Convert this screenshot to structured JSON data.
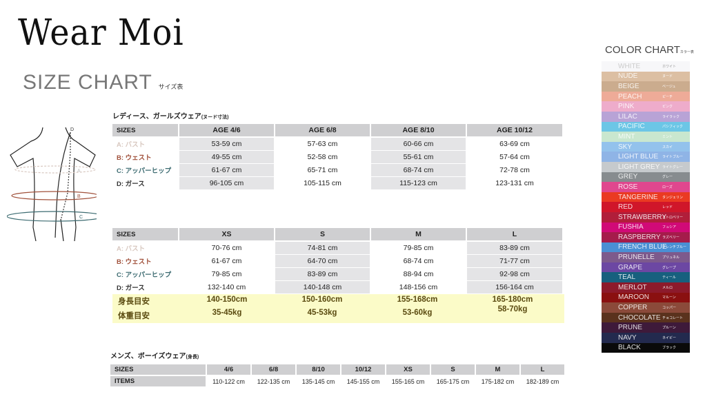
{
  "brand": "Wear Moi",
  "title": "SIZE CHART",
  "title_jp": "サイズ表",
  "ladies": {
    "heading": "レディース、ガールズウェア",
    "heading_note": "(ヌード寸法)",
    "headers": [
      "SIZES",
      "AGE 4/6",
      "AGE 6/8",
      "AGE 8/10",
      "AGE 10/12"
    ],
    "rows": [
      {
        "label": "A: バスト",
        "color": "#d8c8c0",
        "values": [
          "53-59 cm",
          "57-63 cm",
          "60-66 cm",
          "63-69 cm"
        ]
      },
      {
        "label": "B: ウェスト",
        "color": "#a0503a",
        "values": [
          "49-55 cm",
          "52-58 cm",
          "55-61 cm",
          "57-64 cm"
        ]
      },
      {
        "label": "C: アッパーヒップ",
        "color": "#3b6a70",
        "values": [
          "61-67 cm",
          "65-71 cm",
          "68-74 cm",
          "72-78 cm"
        ]
      },
      {
        "label": "D: ガース",
        "color": "#333333",
        "values": [
          "96-105 cm",
          "105-115  cm",
          "115-123 cm",
          "123-131 cm"
        ]
      }
    ]
  },
  "adult": {
    "headers": [
      "SIZES",
      "XS",
      "S",
      "M",
      "L"
    ],
    "rows": [
      {
        "label": "A: バスト",
        "color": "#d8c8c0",
        "values": [
          "70-76 cm",
          "74-81 cm",
          "79-85 cm",
          "83-89 cm"
        ]
      },
      {
        "label": "B: ウェスト",
        "color": "#a0503a",
        "values": [
          "61-67 cm",
          "64-70  cm",
          "68-74 cm",
          "71-77 cm"
        ]
      },
      {
        "label": "C: アッパーヒップ",
        "color": "#3b6a70",
        "values": [
          "79-85 cm",
          "83-89 cm",
          "88-94 cm",
          "92-98 cm"
        ]
      },
      {
        "label": "D: ガース",
        "color": "#333333",
        "values": [
          "132-140 cm",
          "140-148 cm",
          "148-156 cm",
          "156-164 cm"
        ]
      }
    ],
    "height_label": "身長目安",
    "heights": [
      "140-150cm",
      "150-160cm",
      "155-168cm",
      "165-180cm"
    ],
    "weight_label": "体重目安",
    "weights": [
      "35-45kg",
      "45-53kg",
      "53-60kg",
      "58-70kg"
    ]
  },
  "mens": {
    "heading": "メンズ、ボーイズウェア",
    "heading_note": "(身長)",
    "headers": [
      "SIZES",
      "4/6",
      "6/8",
      "8/10",
      "10/12",
      "XS",
      "S",
      "M",
      "L"
    ],
    "row_label": "ITEMS",
    "values": [
      "110-122 cm",
      "122-135 cm",
      "135-145 cm",
      "145-155 cm",
      "155-165 cm",
      "165-175 cm",
      "175-182 cm",
      "182-189 cm"
    ]
  },
  "diagram": {
    "labels": [
      "A",
      "B",
      "C",
      "D"
    ]
  },
  "color_chart": {
    "title": "COLOR CHART",
    "title_jp": "カラー表",
    "colors": [
      {
        "name": "WHITE",
        "jp": "ホワイト",
        "hex": "#f7f7f9"
      },
      {
        "name": "NUDE",
        "jp": "ヌード",
        "hex": "#dcbfa3"
      },
      {
        "name": "BEIGE",
        "jp": "ベージュ",
        "hex": "#cbac8e"
      },
      {
        "name": "PEACH",
        "jp": "ピーチ",
        "hex": "#eeab98"
      },
      {
        "name": "PINK",
        "jp": "ピンク",
        "hex": "#eeaccb"
      },
      {
        "name": "LILAC",
        "jp": "ライラック",
        "hex": "#b8a3d6"
      },
      {
        "name": "PACIFIC",
        "jp": "パシフィック",
        "hex": "#6cc6e6"
      },
      {
        "name": "MINT",
        "jp": "ミント",
        "hex": "#c9e7cf"
      },
      {
        "name": "SKY",
        "jp": "スカイ",
        "hex": "#93c2ec"
      },
      {
        "name": "LIGHT BLUE",
        "jp": "ライトブルー",
        "hex": "#8fb4e6"
      },
      {
        "name": "LIGHT GREY",
        "jp": "ライトグレー",
        "hex": "#c6cacd"
      },
      {
        "name": "GREY",
        "jp": "グレー",
        "hex": "#878c8f"
      },
      {
        "name": "ROSE",
        "jp": "ローズ",
        "hex": "#e0478e"
      },
      {
        "name": "TANGERINE",
        "jp": "タンジェリン",
        "hex": "#ea3a22"
      },
      {
        "name": "RED",
        "jp": "レッド",
        "hex": "#d0162a"
      },
      {
        "name": "STRAWBERRY",
        "jp": "ストロベリー",
        "hex": "#b11e3a"
      },
      {
        "name": "FUSHIA",
        "jp": "フュシア",
        "hex": "#d10a77"
      },
      {
        "name": "RASPBERRY",
        "jp": "ラズベリー",
        "hex": "#a51c4b"
      },
      {
        "name": "FRENCH BLUE",
        "jp": "フレンチブルー",
        "hex": "#4a8fd4"
      },
      {
        "name": "PRUNELLE",
        "jp": "プリュネル",
        "hex": "#7d5a8c"
      },
      {
        "name": "GRAPE",
        "jp": "グレープ",
        "hex": "#6c47a3"
      },
      {
        "name": "TEAL",
        "jp": "ティール",
        "hex": "#17607e"
      },
      {
        "name": "MERLOT",
        "jp": "メルロ",
        "hex": "#8c1a2b"
      },
      {
        "name": "MAROON",
        "jp": "マルーン",
        "hex": "#8a1010"
      },
      {
        "name": "COPPER",
        "jp": "コッパー",
        "hex": "#8b4a3a"
      },
      {
        "name": "CHOCOLATE",
        "jp": "チョコレート",
        "hex": "#5a321d"
      },
      {
        "name": "PRUNE",
        "jp": "プルーン",
        "hex": "#3e1a3a"
      },
      {
        "name": "NAVY",
        "jp": "ネイビー",
        "hex": "#232a4e"
      },
      {
        "name": "BLACK",
        "jp": "ブラック",
        "hex": "#0a0a0a"
      }
    ]
  }
}
